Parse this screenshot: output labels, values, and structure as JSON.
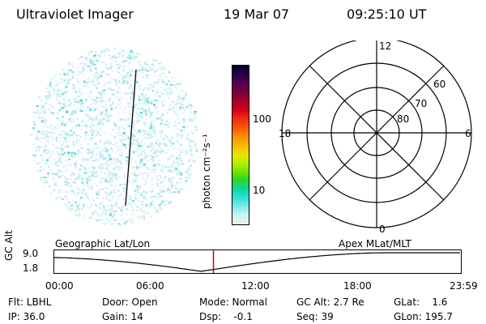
{
  "header": {
    "instrument": "Ultraviolet Imager",
    "date": "19 Mar 07",
    "time": "09:25:10 UT"
  },
  "colorbar": {
    "unit_label": "photon cm⁻²s⁻¹",
    "ticks": [
      "100",
      "10"
    ],
    "colors": [
      "#000033",
      "#2a0040",
      "#55004f",
      "#7a0039",
      "#a8002a",
      "#d10019",
      "#ef2810",
      "#f7560a",
      "#f98a06",
      "#f7b702",
      "#e8e400",
      "#b8f000",
      "#70e400",
      "#26d82a",
      "#11d6a0",
      "#2ae0d8",
      "#7fece6",
      "#c8f4f2",
      "#ededed"
    ]
  },
  "polar": {
    "labels": {
      "top": "12",
      "bottom": "0",
      "left": "18",
      "right": "6"
    },
    "rings": [
      "60",
      "70",
      "80"
    ]
  },
  "timeline": {
    "left_title": "Geographic Lat/Lon",
    "right_title": "Apex  MLat/MLT",
    "axis_title": "GC Alt",
    "y_high": "9.0",
    "y_low": "1.8",
    "x_ticks": [
      "00:00",
      "06:00",
      "12:00",
      "18:00",
      "23:59"
    ],
    "marker_time": "09:25"
  },
  "status": {
    "flt": "Flt: LBHL",
    "ip": "IP: 36.0",
    "door": "Door: Open",
    "gain": "Gain: 14",
    "mode": "Mode: Normal",
    "dsp": "Dsp:    -0.1",
    "gc_alt": "GC Alt: 2.7 Re",
    "seq": "Seq: 39",
    "glat": "GLat:    1.6",
    "glon": "GLon: 195.7"
  }
}
